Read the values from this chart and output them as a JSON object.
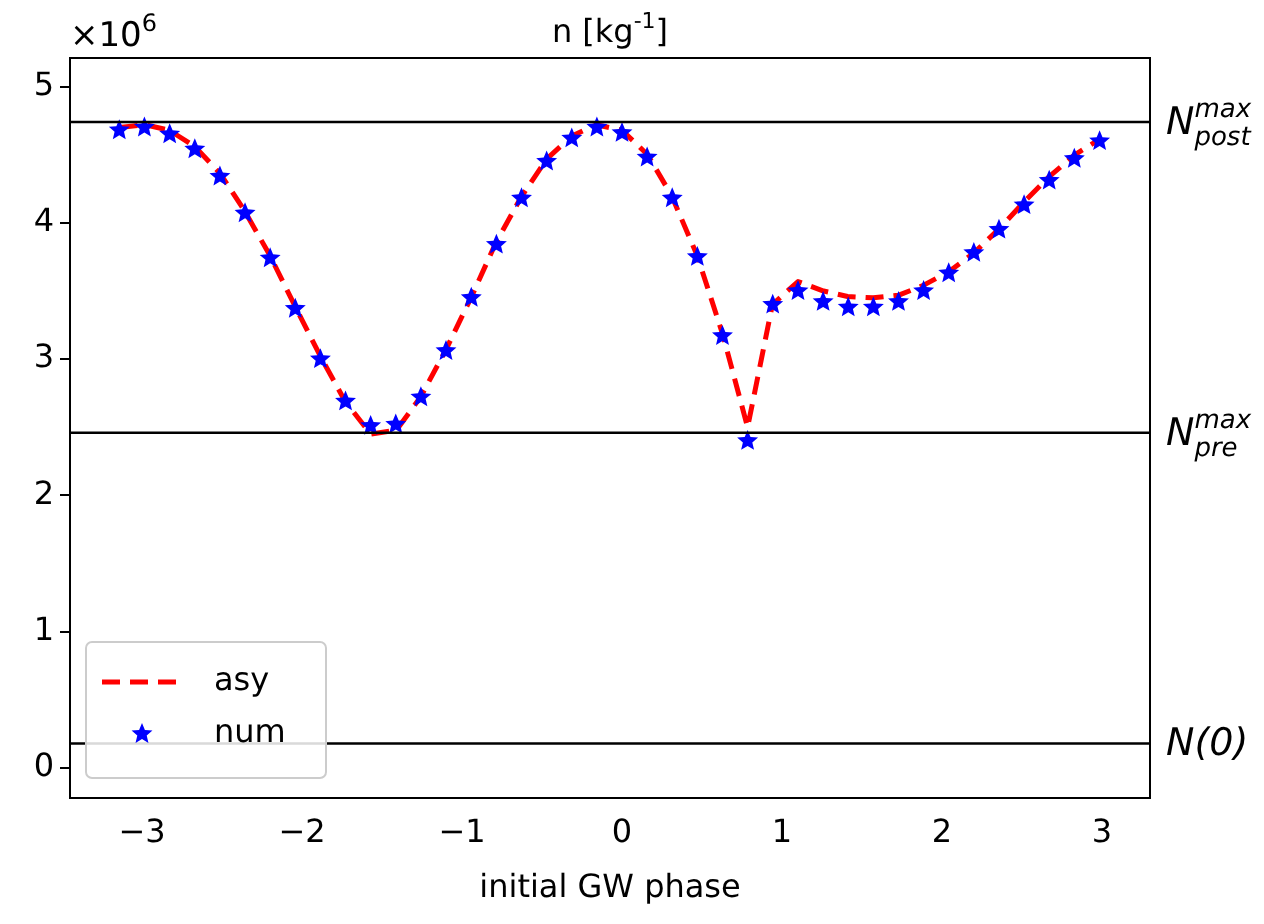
{
  "chart_data": {
    "type": "line",
    "title": "n [kg$^{-1}$]",
    "xlabel": "initial GW phase",
    "annotations": [
      "×10$^{6}$"
    ],
    "xlim": [
      -3.45,
      3.3
    ],
    "xticks": [
      {
        "value": -3,
        "label": "−3"
      },
      {
        "value": -2,
        "label": "−2"
      },
      {
        "value": -1,
        "label": "−1"
      },
      0,
      1,
      2,
      3
    ],
    "ylim": [
      -0.22,
      5.21
    ],
    "yticks": [
      0,
      1,
      2,
      3,
      4,
      5
    ],
    "grid": false,
    "legend": "bottom left",
    "ref_lines": [
      {
        "axis": "y",
        "value": 4.74,
        "label": "N$^{max}$$_{post}$",
        "color": "#000000"
      },
      {
        "axis": "y",
        "value": 2.46,
        "label": "N$^{max}$$_{pre}$",
        "color": "#000000"
      },
      {
        "axis": "y",
        "value": 0.18,
        "label": "N(0)",
        "color": "#000000"
      }
    ],
    "series": [
      {
        "name": "asy",
        "type": "line",
        "color": "#ff0000",
        "line_style": "dashed",
        "marker": "none",
        "x": [
          -3.14,
          -2.98,
          -2.83,
          -2.67,
          -2.51,
          -2.36,
          -2.2,
          -2.04,
          -1.88,
          -1.73,
          -1.57,
          -1.41,
          -1.26,
          -1.1,
          -0.94,
          -0.79,
          -0.63,
          -0.47,
          -0.31,
          -0.16,
          0,
          0.16,
          0.31,
          0.47,
          0.63,
          0.785,
          0.94,
          1.1,
          1.26,
          1.41,
          1.57,
          1.73,
          1.88,
          2.04,
          2.2,
          2.36,
          2.51,
          2.67,
          2.83,
          2.98
        ],
        "values": [
          4.7,
          4.72,
          4.68,
          4.56,
          4.36,
          4.09,
          3.76,
          3.38,
          3.01,
          2.69,
          2.45,
          2.48,
          2.72,
          3.07,
          3.46,
          3.85,
          4.19,
          4.47,
          4.64,
          4.72,
          4.68,
          4.5,
          4.2,
          3.76,
          3.18,
          2.5,
          3.4,
          3.57,
          3.5,
          3.46,
          3.45,
          3.47,
          3.54,
          3.64,
          3.78,
          3.96,
          4.15,
          4.34,
          4.5,
          4.61
        ]
      },
      {
        "name": "num",
        "type": "scatter",
        "color": "#0000ff",
        "marker": "star",
        "x": [
          -3.142,
          -2.985,
          -2.827,
          -2.67,
          -2.513,
          -2.356,
          -2.199,
          -2.042,
          -1.885,
          -1.728,
          -1.571,
          -1.414,
          -1.257,
          -1.1,
          -0.942,
          -0.785,
          -0.628,
          -0.471,
          -0.314,
          -0.157,
          0,
          0.157,
          0.314,
          0.471,
          0.628,
          0.785,
          0.942,
          1.1,
          1.257,
          1.414,
          1.571,
          1.728,
          1.885,
          2.042,
          2.199,
          2.356,
          2.513,
          2.67,
          2.827,
          2.985
        ],
        "values": [
          4.68,
          4.7,
          4.65,
          4.54,
          4.34,
          4.07,
          3.74,
          3.37,
          3.0,
          2.69,
          2.51,
          2.52,
          2.72,
          3.06,
          3.45,
          3.84,
          4.18,
          4.45,
          4.62,
          4.7,
          4.66,
          4.48,
          4.18,
          3.75,
          3.17,
          2.4,
          3.4,
          3.5,
          3.42,
          3.38,
          3.38,
          3.42,
          3.5,
          3.63,
          3.78,
          3.95,
          4.13,
          4.31,
          4.47,
          4.6
        ]
      }
    ]
  }
}
